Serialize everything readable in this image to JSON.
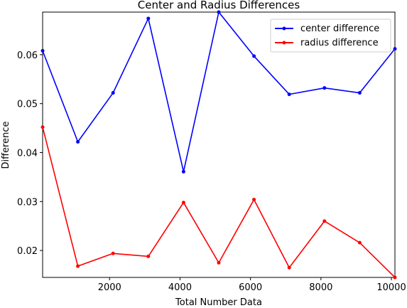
{
  "chart_data": {
    "type": "line",
    "title": "Center and Radius Differences",
    "xlabel": "Total Number Data",
    "ylabel": "Difference",
    "xlim": [
      100,
      10100
    ],
    "ylim": [
      0.0145,
      0.0687
    ],
    "x_ticks": [
      2000,
      4000,
      6000,
      8000,
      10000
    ],
    "x_tick_labels": [
      "2000",
      "4000",
      "6000",
      "8000",
      "10000"
    ],
    "y_ticks": [
      0.02,
      0.03,
      0.04,
      0.05,
      0.06
    ],
    "y_tick_labels": [
      "0.02",
      "0.03",
      "0.04",
      "0.05",
      "0.06"
    ],
    "grid": false,
    "legend_position": "top-right",
    "x": [
      100,
      1100,
      2100,
      3100,
      4100,
      5100,
      6100,
      7100,
      8100,
      9100,
      10100
    ],
    "series": [
      {
        "name": "center difference",
        "color": "#0000ff",
        "values": [
          0.0608,
          0.0422,
          0.0522,
          0.0674,
          0.0361,
          0.0687,
          0.0597,
          0.0519,
          0.0532,
          0.0522,
          0.0612
        ]
      },
      {
        "name": "radius difference",
        "color": "#ff0000",
        "values": [
          0.0452,
          0.0168,
          0.0194,
          0.0188,
          0.0298,
          0.0175,
          0.0304,
          0.0165,
          0.026,
          0.0216,
          0.0145
        ]
      }
    ]
  }
}
